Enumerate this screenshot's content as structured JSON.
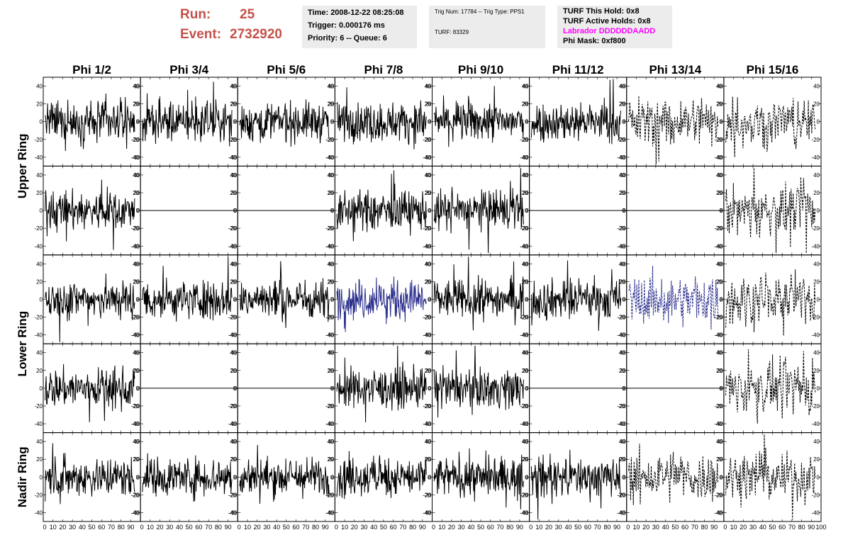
{
  "header": {
    "run_label": "Run:",
    "run_value": "25",
    "event_label": "Event:",
    "event_value": "2732920",
    "color": "#c4514a"
  },
  "time_box": {
    "time": "Time: 2008-12-22 08:25:08",
    "trigger": "Trigger: 0.000176 ms",
    "priority": "Priority: 6 -- Queue: 6"
  },
  "trig_box": {
    "trig": "Trig Num: 17784 -- Trig Type: PPS1",
    "turf": "TURF: 83329"
  },
  "turf_box": {
    "this_hold": "TURF This Hold: 0x8",
    "active_holds": "TURF Active Holds: 0x8",
    "labrador": "Labrador DDDDDDAADD",
    "labrador_color": "#ff00ff",
    "phi_mask": "Phi Mask: 0xf800"
  },
  "columns": [
    "Phi 1/2",
    "Phi 3/4",
    "Phi 5/6",
    "Phi 7/8",
    "Phi 9/10",
    "Phi 11/12",
    "Phi 13/14",
    "Phi 15/16"
  ],
  "rings": [
    "Upper Ring",
    "Lower Ring",
    "Nadir Ring"
  ],
  "chart_data": {
    "type": "line",
    "title": "",
    "xlabel": "",
    "ylabel": "",
    "xlim": [
      0,
      100
    ],
    "ylim": [
      -50,
      50
    ],
    "x_ticks": [
      "0",
      "10",
      "20",
      "30",
      "40",
      "50",
      "60",
      "70",
      "80",
      "90",
      "100"
    ],
    "y_ticks": [
      "-40",
      "-20",
      "0",
      "20",
      "40"
    ],
    "rows": 5,
    "cols": 8,
    "grid": false,
    "colors": {
      "normal": "#000000",
      "highlight": "#2b2f8c"
    },
    "panels": [
      [
        "noise",
        "noise",
        "noise",
        "noise",
        "noise",
        "noise",
        "dashed",
        "dashed"
      ],
      [
        "noise",
        "flat",
        "flat",
        "noise",
        "noise",
        "flat",
        "flat",
        "dashed"
      ],
      [
        "noise",
        "noise",
        "noise",
        "blue",
        "noise",
        "noise",
        "bluedashed",
        "dashed"
      ],
      [
        "noise",
        "flat",
        "flat",
        "noise",
        "noise",
        "flat",
        "flat",
        "dashed"
      ],
      [
        "noise",
        "noise",
        "noise",
        "noise",
        "noise",
        "noise",
        "dashed",
        "dashed"
      ]
    ]
  }
}
